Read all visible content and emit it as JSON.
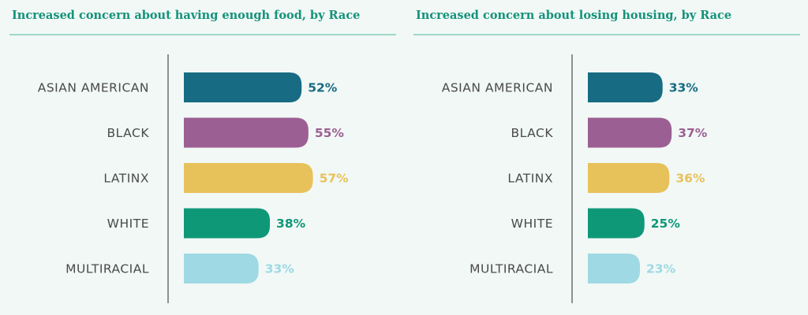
{
  "theme": {
    "title_color": "#15927a",
    "rule_color": "#9fd7ca",
    "axis_color": "#6d6d6d"
  },
  "chart_data": [
    {
      "type": "bar",
      "orientation": "horizontal",
      "title": "Increased concern about having enough food, by Race",
      "categories": [
        "ASIAN AMERICAN",
        "BLACK",
        "LATINX",
        "WHITE",
        "MULTIRACIAL"
      ],
      "values": [
        52,
        55,
        57,
        38,
        33
      ],
      "value_labels": [
        "52%",
        "55%",
        "57%",
        "38%",
        "33%"
      ],
      "colors": [
        "#176b83",
        "#9c5f93",
        "#e7c25a",
        "#0f9878",
        "#9fd9e3"
      ],
      "xlim": [
        0,
        57
      ],
      "xlabel": "",
      "ylabel": "",
      "grid": false
    },
    {
      "type": "bar",
      "orientation": "horizontal",
      "title": "Increased concern about losing housing, by Race",
      "categories": [
        "ASIAN AMERICAN",
        "BLACK",
        "LATINX",
        "WHITE",
        "MULTIRACIAL"
      ],
      "values": [
        33,
        37,
        36,
        25,
        23
      ],
      "value_labels": [
        "33%",
        "37%",
        "36%",
        "25%",
        "23%"
      ],
      "colors": [
        "#176b83",
        "#9c5f93",
        "#e7c25a",
        "#0f9878",
        "#9fd9e3"
      ],
      "xlim": [
        0,
        57
      ],
      "xlabel": "",
      "ylabel": "",
      "grid": false
    }
  ]
}
